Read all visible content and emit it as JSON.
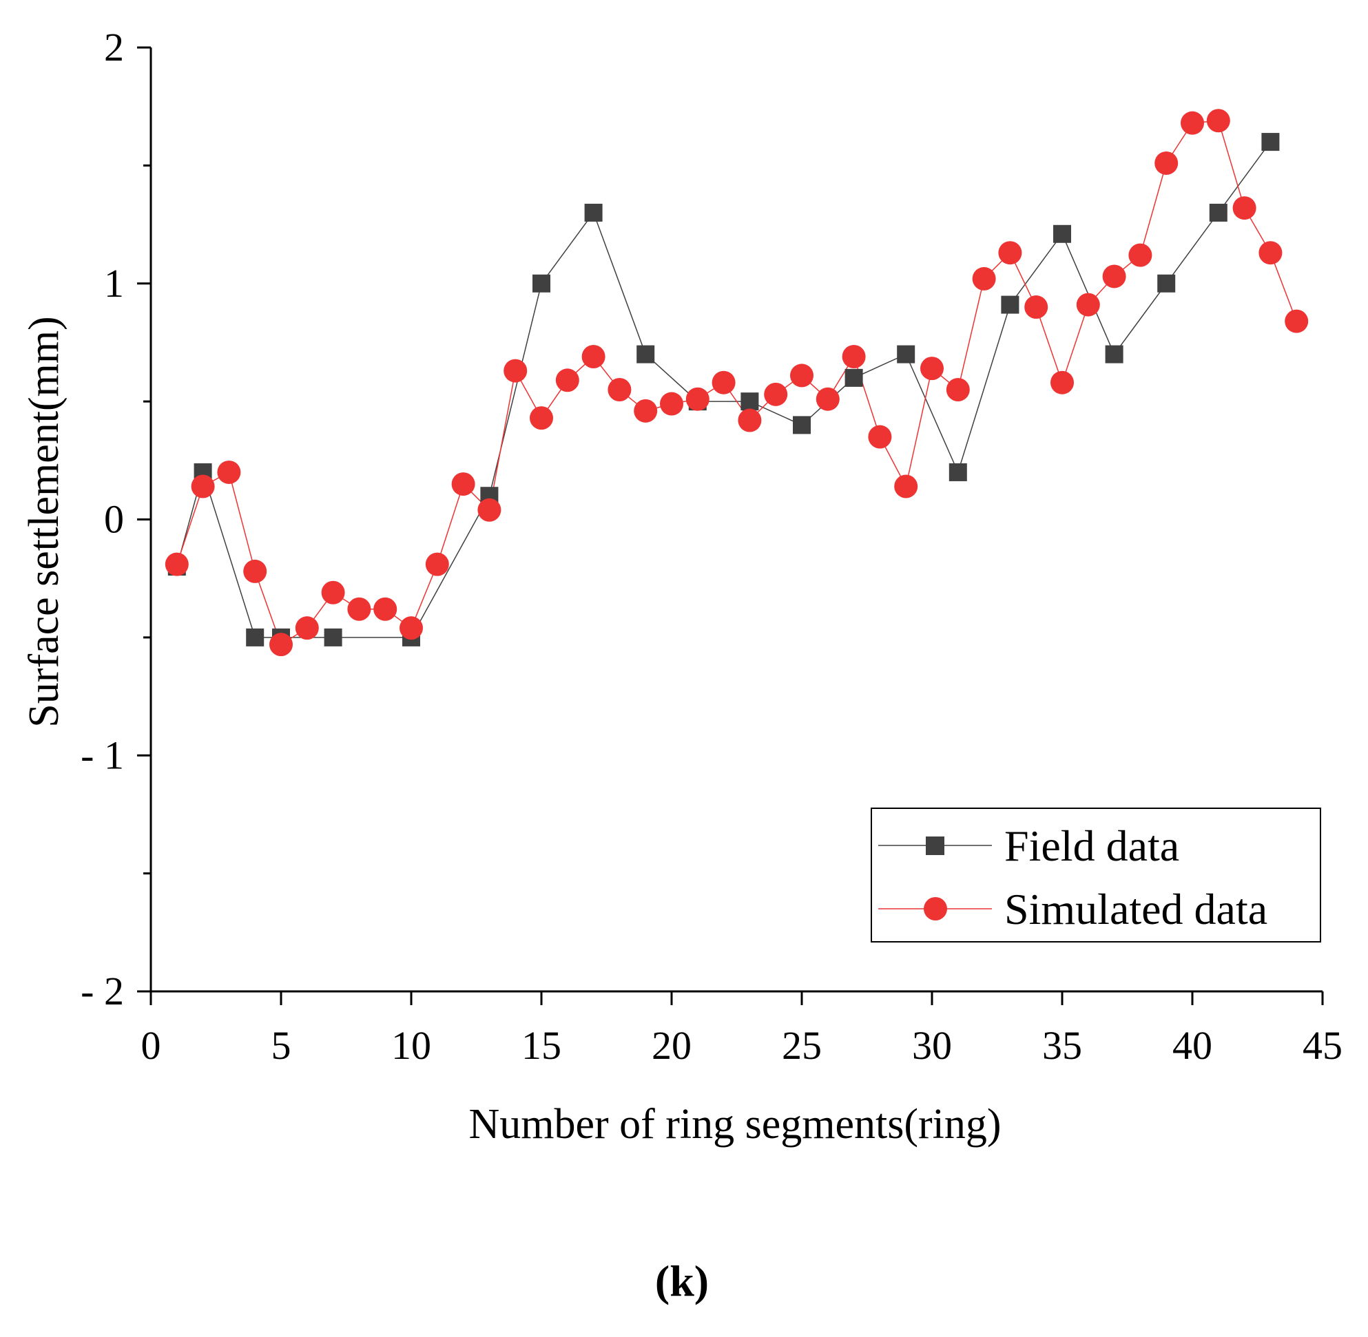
{
  "chart_data": {
    "type": "line",
    "title": "",
    "xlabel": "Number of ring segments(ring)",
    "ylabel": "Surface settlement(mm)",
    "xlim": [
      0,
      45
    ],
    "ylim": [
      -2,
      2
    ],
    "x_ticks": [
      0,
      5,
      10,
      15,
      20,
      25,
      30,
      35,
      40,
      45
    ],
    "x_tick_labels": [
      "0",
      "5",
      "10",
      "15",
      "20",
      "25",
      "30",
      "35",
      "40",
      "45"
    ],
    "y_ticks": [
      -2,
      -1,
      0,
      1,
      2
    ],
    "y_tick_labels": [
      "- 2",
      "- 1",
      "0",
      "1",
      "2"
    ],
    "y_minor_ticks": [
      -1.5,
      -0.5,
      0.5,
      1.5
    ],
    "grid": false,
    "legend_position": "bottom-right",
    "panel_label": "(k)",
    "series": [
      {
        "name": "Field data",
        "marker": "square",
        "color": "#404040",
        "x": [
          1,
          2,
          4,
          5,
          7,
          10,
          13,
          15,
          17,
          19,
          21,
          23,
          25,
          27,
          29,
          31,
          33,
          35,
          37,
          39,
          41,
          43
        ],
        "y": [
          -0.2,
          0.2,
          -0.5,
          -0.5,
          -0.5,
          -0.5,
          0.1,
          1.0,
          1.3,
          0.7,
          0.5,
          0.5,
          0.4,
          0.6,
          0.7,
          0.2,
          0.91,
          1.21,
          0.7,
          1.0,
          1.3,
          1.6
        ]
      },
      {
        "name": "Simulated data",
        "marker": "circle",
        "color": "#ee3333",
        "x": [
          1,
          2,
          3,
          4,
          5,
          6,
          7,
          8,
          9,
          10,
          11,
          12,
          13,
          14,
          15,
          16,
          17,
          18,
          19,
          20,
          21,
          22,
          23,
          24,
          25,
          26,
          27,
          28,
          29,
          30,
          31,
          32,
          33,
          34,
          35,
          36,
          37,
          38,
          39,
          40,
          41,
          42,
          43,
          44
        ],
        "y": [
          -0.19,
          0.14,
          0.2,
          -0.22,
          -0.53,
          -0.46,
          -0.31,
          -0.38,
          -0.38,
          -0.46,
          -0.19,
          0.15,
          0.04,
          0.63,
          0.43,
          0.59,
          0.69,
          0.55,
          0.46,
          0.49,
          0.51,
          0.58,
          0.42,
          0.53,
          0.61,
          0.51,
          0.69,
          0.35,
          0.14,
          0.64,
          0.55,
          1.02,
          1.13,
          0.9,
          0.58,
          0.91,
          1.03,
          1.12,
          1.51,
          1.68,
          1.69,
          1.32,
          1.13,
          0.84
        ]
      }
    ]
  }
}
